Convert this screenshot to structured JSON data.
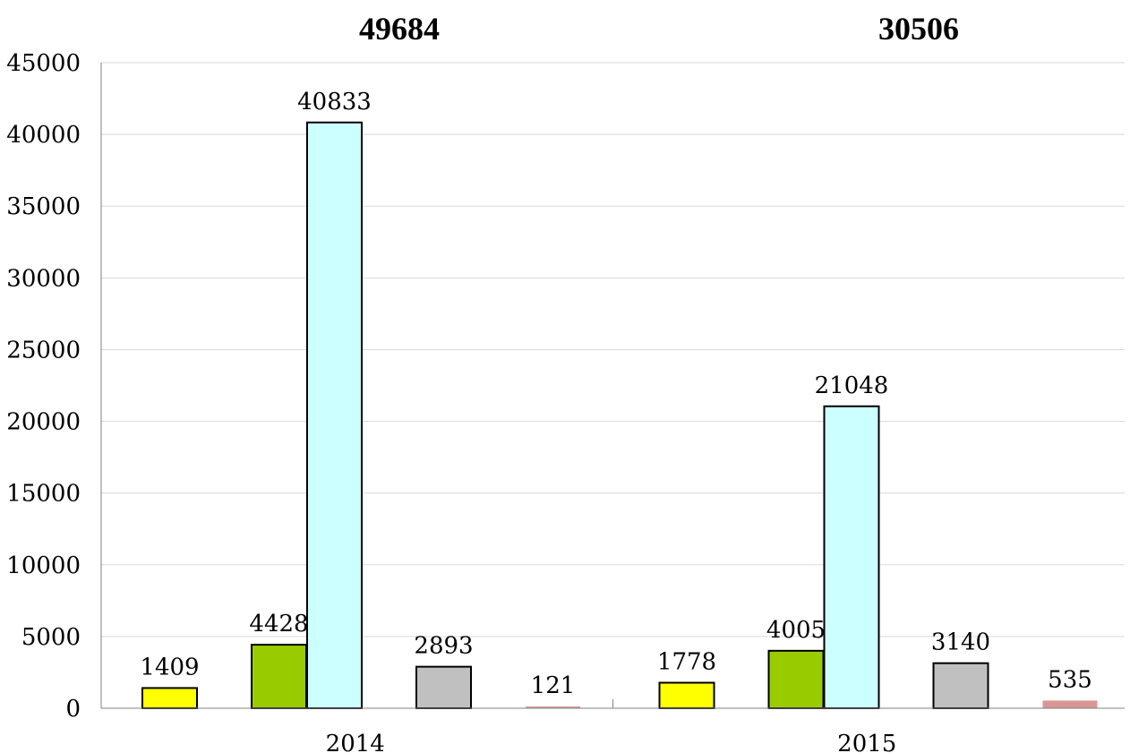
{
  "chart_data": {
    "type": "bar",
    "categories": [
      "2014",
      "2015"
    ],
    "category_totals": [
      "49684",
      "30506"
    ],
    "series_colors": [
      "#ffff00",
      "#99cc00",
      "#ccffff",
      "#c0c0c0",
      "#d99694"
    ],
    "series": [
      {
        "values": [
          1409,
          1778
        ]
      },
      {
        "values": [
          4428,
          4005
        ]
      },
      {
        "values": [
          40833,
          21048
        ]
      },
      {
        "values": [
          2893,
          3140
        ]
      },
      {
        "values": [
          121,
          535
        ]
      }
    ],
    "ylim": [
      0,
      45000
    ],
    "yticks": [
      "0",
      "5000",
      "10000",
      "15000",
      "20000",
      "25000",
      "30000",
      "35000",
      "40000",
      "45000"
    ],
    "grid": true,
    "legend": "none"
  }
}
